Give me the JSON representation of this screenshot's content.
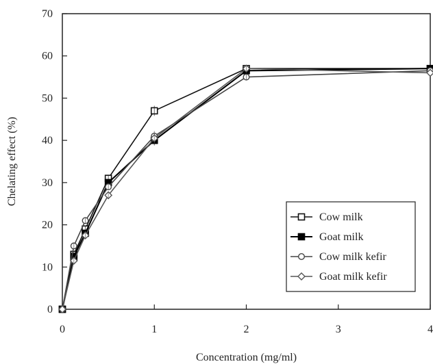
{
  "chart_data": {
    "type": "line",
    "title": "",
    "xlabel": "Concentration (mg/ml)",
    "ylabel": "Chelating effect (%)",
    "x_scale": "categorical-position",
    "x_ticks": [
      "0",
      "1",
      "2",
      "3",
      "4"
    ],
    "x": [
      0,
      0.125,
      0.25,
      0.5,
      1,
      2,
      4
    ],
    "ylim": [
      0,
      70
    ],
    "y_ticks": [
      "0",
      "10",
      "20",
      "30",
      "40",
      "50",
      "60",
      "70"
    ],
    "grid": false,
    "legend_position": "lower-right",
    "series": [
      {
        "name": "Cow milk",
        "marker": "open-square",
        "color": "#111111",
        "values": [
          0,
          13,
          19,
          31,
          47,
          57,
          57
        ]
      },
      {
        "name": "Goat milk",
        "marker": "filled-square",
        "color": "#000000",
        "values": [
          0,
          12.5,
          18,
          30,
          40,
          56.5,
          57
        ]
      },
      {
        "name": "Cow milk kefir",
        "marker": "open-circle",
        "color": "#444444",
        "values": [
          0,
          15,
          21,
          29,
          41,
          55,
          56.5
        ]
      },
      {
        "name": "Goat milk kefir",
        "marker": "open-diamond",
        "color": "#555555",
        "values": [
          0,
          11.5,
          17.5,
          27,
          40.5,
          57,
          56
        ]
      }
    ]
  }
}
